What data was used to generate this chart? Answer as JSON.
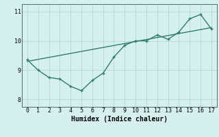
{
  "zigzag_x": [
    0,
    1,
    2,
    3,
    4,
    5,
    6,
    7,
    8,
    9,
    10,
    11,
    12,
    13,
    14,
    15,
    16,
    17
  ],
  "zigzag_y": [
    9.35,
    9.0,
    8.75,
    8.7,
    8.45,
    8.3,
    8.65,
    8.9,
    9.45,
    9.85,
    10.0,
    10.0,
    10.2,
    10.05,
    10.3,
    10.75,
    10.9,
    10.4
  ],
  "trend_x": [
    0,
    17
  ],
  "trend_y": [
    9.3,
    10.45
  ],
  "line_color": "#2e7d6e",
  "bg_color": "#d6f0f0",
  "grid_color": "#b8d4d4",
  "xlabel": "Humidex (Indice chaleur)",
  "ylim": [
    7.75,
    11.25
  ],
  "xlim": [
    -0.5,
    17.5
  ],
  "yticks": [
    8,
    9,
    10,
    11
  ],
  "xticks": [
    0,
    1,
    2,
    3,
    4,
    5,
    6,
    7,
    8,
    9,
    10,
    11,
    12,
    13,
    14,
    15,
    16,
    17
  ]
}
